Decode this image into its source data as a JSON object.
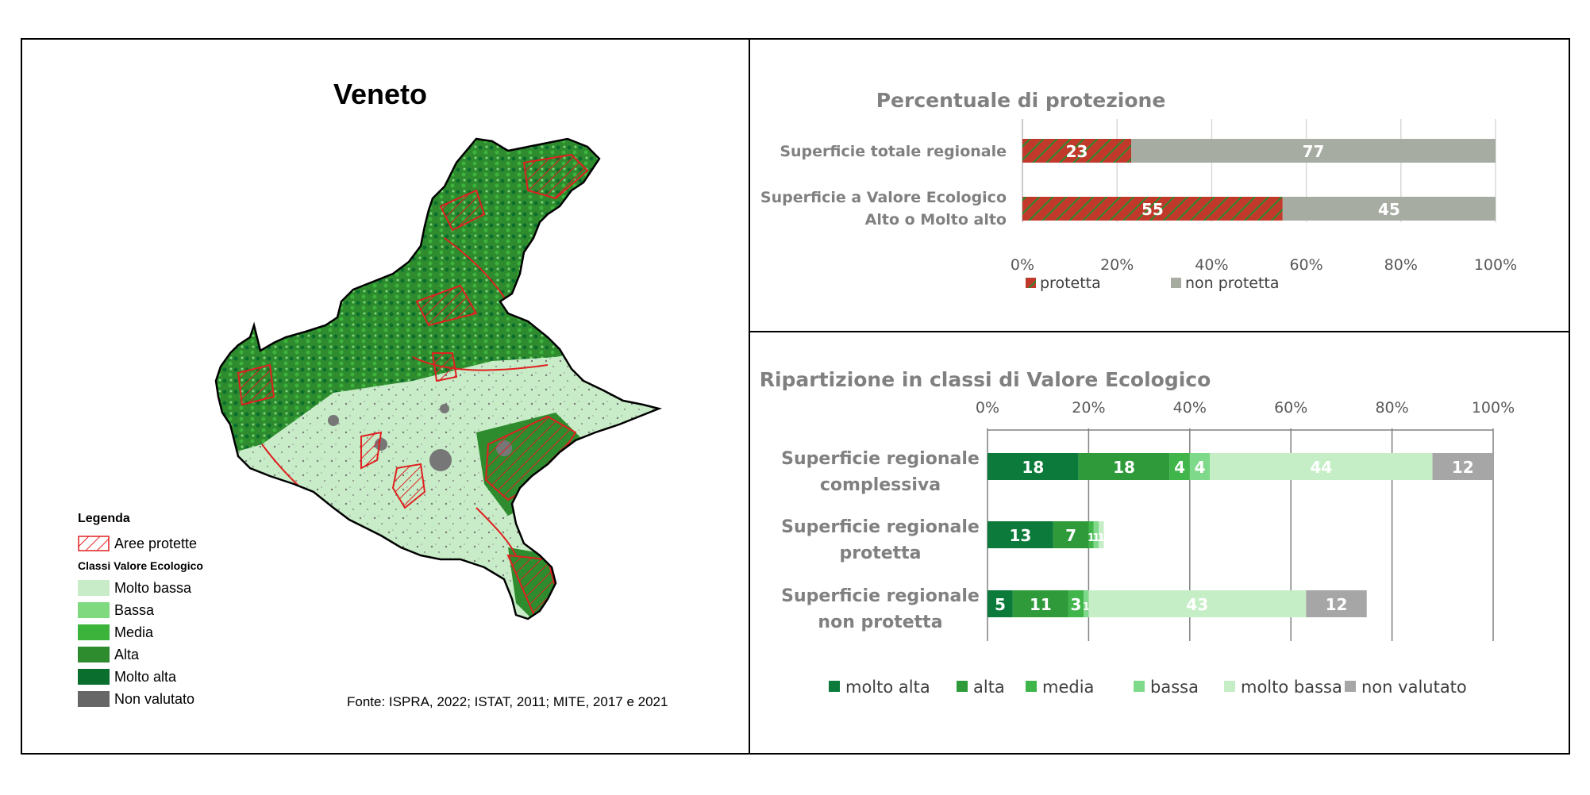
{
  "map": {
    "title": "Veneto",
    "legend_title": "Legenda",
    "protected_label": "Aree protette",
    "classes_title": "Classi Valore Ecologico",
    "classes": [
      {
        "label": "Molto bassa",
        "color": "#c7ecc7"
      },
      {
        "label": "Bassa",
        "color": "#7fd97f"
      },
      {
        "label": "Media",
        "color": "#3cb43c"
      },
      {
        "label": "Alta",
        "color": "#2e8b2e"
      },
      {
        "label": "Molto alta",
        "color": "#0a6e2e"
      },
      {
        "label": "Non valutato",
        "color": "#666666"
      }
    ],
    "source": "Fonte: ISPRA, 2022; ISTAT, 2011; MITE, 2017 e 2021",
    "protected_color": "#e02020"
  },
  "chart_data": [
    {
      "type": "bar",
      "orientation": "horizontal",
      "stacked": "percent",
      "title": "Percentuale di protezione",
      "categories": [
        "Superficie totale regionale",
        "Superficie a Valore Ecologico Alto o Molto alto"
      ],
      "series": [
        {
          "name": "protetta",
          "values": [
            23,
            55
          ],
          "color": "#c0392b",
          "pattern": "green-hatch"
        },
        {
          "name": "non protetta",
          "values": [
            77,
            45
          ],
          "color": "#a6aca1"
        }
      ],
      "x_ticks": [
        "0%",
        "20%",
        "40%",
        "60%",
        "80%",
        "100%"
      ],
      "xlim": [
        0,
        100
      ],
      "legend_position": "bottom"
    },
    {
      "type": "bar",
      "orientation": "horizontal",
      "stacked": true,
      "title": "Ripartizione in classi di Valore Ecologico",
      "categories": [
        "Superficie regionale complessiva",
        "Superficie regionale protetta",
        "Superficie regionale non protetta"
      ],
      "series": [
        {
          "name": "molto alta",
          "values": [
            18,
            13,
            5
          ],
          "color": "#0b7a3a"
        },
        {
          "name": "alta",
          "values": [
            18,
            7,
            11
          ],
          "color": "#2e9a3a"
        },
        {
          "name": "media",
          "values": [
            4,
            1,
            3
          ],
          "color": "#3fb54a"
        },
        {
          "name": "bassa",
          "values": [
            4,
            1,
            1
          ],
          "color": "#7fd98a"
        },
        {
          "name": "molto bassa",
          "values": [
            44,
            1,
            43
          ],
          "color": "#c6eec6"
        },
        {
          "name": "non valutato",
          "values": [
            12,
            0,
            12
          ],
          "color": "#a6a6a6"
        }
      ],
      "x_ticks": [
        "0%",
        "20%",
        "40%",
        "60%",
        "80%",
        "100%"
      ],
      "xlim": [
        0,
        100
      ],
      "axis_position": "top",
      "legend_position": "bottom"
    }
  ]
}
